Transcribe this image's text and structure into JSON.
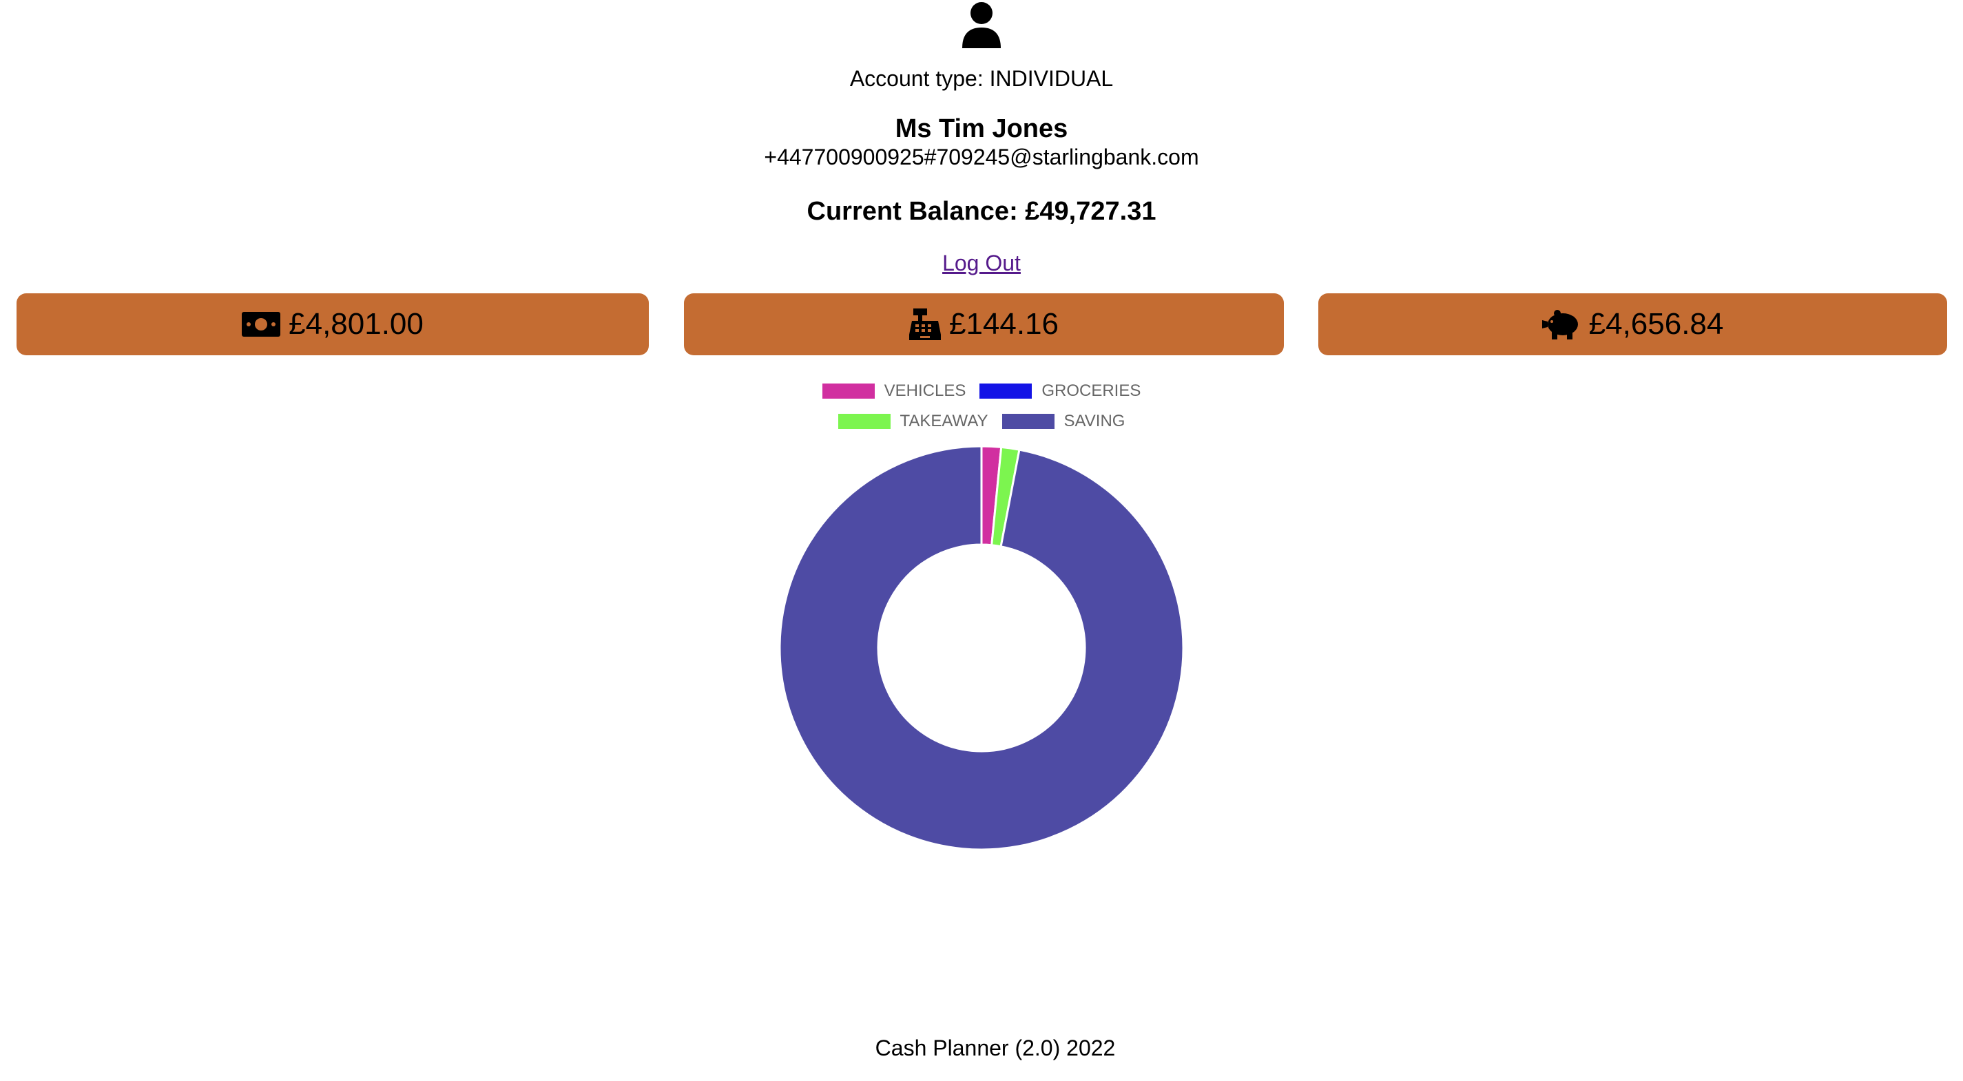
{
  "profile": {
    "avatar_icon": "user-icon",
    "account_type": "Account type: INDIVIDUAL",
    "name": "Ms Tim Jones",
    "email": "+447700900925#709245@starlingbank.com",
    "balance": "Current Balance: £49,727.31",
    "logout_label": "Log Out"
  },
  "summary": {
    "accent": "#c46c32",
    "income": {
      "icon": "money-bill-icon",
      "value": "£4,801.00"
    },
    "spent": {
      "icon": "cash-register-icon",
      "value": "£144.16"
    },
    "saved": {
      "icon": "piggy-bank-icon",
      "value": "£4,656.84"
    }
  },
  "chart_data": {
    "type": "doughnut",
    "legend_position": "top",
    "series": [
      {
        "name": "VEHICLES",
        "value": 75.0,
        "color": "#d12fa0"
      },
      {
        "name": "GROCERIES",
        "value": 0,
        "color": "#1414e6"
      },
      {
        "name": "TAKEAWAY",
        "value": 69.16,
        "color": "#7cf54f"
      },
      {
        "name": "SAVING",
        "value": 4656.84,
        "color": "#4e4ba4"
      }
    ]
  },
  "footer": {
    "text": "Cash Planner (2.0) 2022"
  }
}
